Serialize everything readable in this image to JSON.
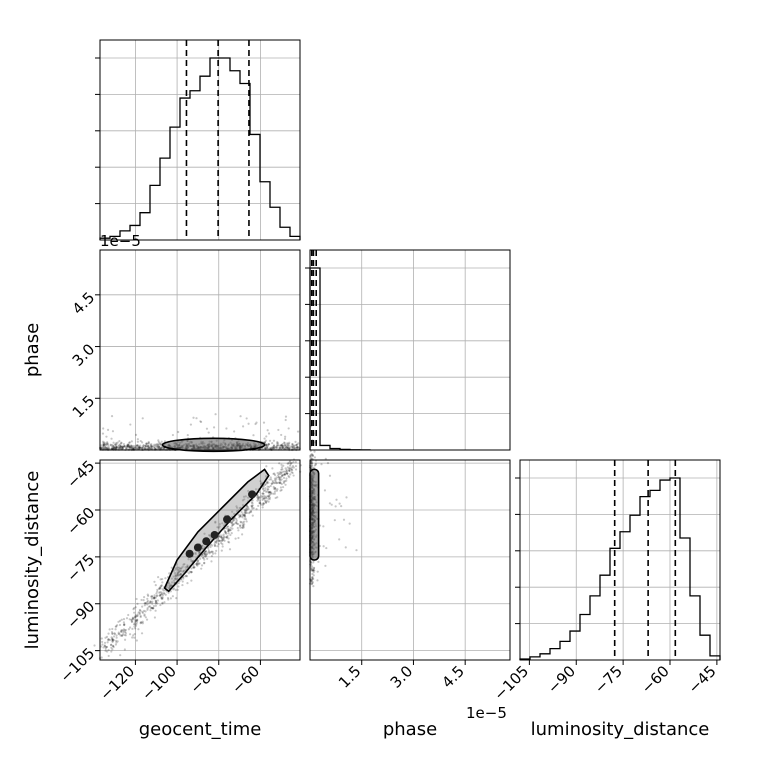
{
  "chart_data": {
    "type": "corner",
    "parameters": [
      "geocent_time",
      "phase",
      "luminosity_distance"
    ],
    "offset_labels": {
      "phase_axis": "1e−5"
    },
    "axes": {
      "geocent_time": {
        "range": [
          -137,
          -41
        ],
        "ticks": [
          -120,
          -100,
          -80,
          -60
        ],
        "tick_labels": [
          "−120",
          "−100",
          "−80",
          "−60"
        ]
      },
      "phase": {
        "range": [
          0.0,
          5.8
        ],
        "ticks": [
          1.5,
          3.0,
          4.5
        ],
        "tick_labels": [
          "1.5",
          "3.0",
          "4.5"
        ]
      },
      "luminosity_distance": {
        "range": [
          -108,
          -44
        ],
        "ticks": [
          -105,
          -90,
          -75,
          -60,
          -45
        ],
        "tick_labels": [
          "−105",
          "−90",
          "−75",
          "−60",
          "−45"
        ]
      }
    },
    "histograms": {
      "geocent_time": {
        "bin_edges": [
          -137,
          -132.2,
          -127.4,
          -122.6,
          -117.8,
          -113,
          -108.2,
          -103.4,
          -98.6,
          -93.8,
          -89,
          -84.2,
          -79.4,
          -74.6,
          -69.8,
          -65,
          -60.2,
          -55.4,
          -50.6,
          -45.8,
          -41
        ],
        "counts": [
          1,
          2,
          5,
          8,
          15,
          30,
          45,
          62,
          78,
          82,
          90,
          100,
          100,
          93,
          86,
          58,
          32,
          18,
          7,
          2
        ],
        "quantiles": [
          -95.5,
          -80.3,
          -65.5
        ]
      },
      "phase": {
        "bin_edges": [
          0.0,
          0.29,
          0.58,
          0.87,
          1.16,
          1.45,
          1.74
        ],
        "counts": [
          100,
          2.5,
          0.8,
          0.3,
          0.1,
          0.05
        ],
        "quantiles": [
          0.05,
          0.1,
          0.18
        ]
      },
      "luminosity_distance": {
        "bin_edges": [
          -108,
          -104.8,
          -101.6,
          -98.4,
          -95.2,
          -92,
          -88.8,
          -85.6,
          -82.4,
          -79.2,
          -76,
          -72.8,
          -69.6,
          -66.4,
          -63.2,
          -60,
          -56.8,
          -53.6,
          -50.4,
          -47.2,
          -44
        ],
        "counts": [
          0.5,
          1.5,
          3,
          5.5,
          9,
          14,
          22,
          31,
          41,
          54,
          62,
          70,
          79,
          82,
          87,
          88,
          59,
          31,
          12,
          2
        ],
        "quantiles": [
          -77.7,
          -67.0,
          -58.3
        ]
      }
    },
    "contours_2d": [
      {
        "x": "geocent_time",
        "y": "luminosity_distance",
        "samples_trend": {
          "x": [
            -134,
            -43
          ],
          "y": [
            -104,
            -45
          ]
        },
        "level_outline": [
          [
            -106,
            -85
          ],
          [
            -100,
            -76
          ],
          [
            -90,
            -67
          ],
          [
            -78,
            -59
          ],
          [
            -66,
            -51
          ],
          [
            -58,
            -47
          ],
          [
            -56,
            -49
          ],
          [
            -62,
            -55
          ],
          [
            -74,
            -63
          ],
          [
            -86,
            -72
          ],
          [
            -96,
            -80
          ],
          [
            -104,
            -86
          ]
        ],
        "core_points": [
          [
            -82,
            -68
          ],
          [
            -86,
            -70
          ],
          [
            -90,
            -72
          ],
          [
            -94,
            -74
          ],
          [
            -76,
            -63
          ],
          [
            -64,
            -55
          ]
        ]
      },
      {
        "x": "geocent_time",
        "y": "phase",
        "level_outline_x": [
          -107,
          -58
        ],
        "level_outline_y": [
          0.02,
          0.28
        ]
      },
      {
        "x": "phase",
        "y": "luminosity_distance",
        "level_outline_x": [
          0.0,
          0.25
        ],
        "level_outline_y": [
          -76,
          -47
        ]
      }
    ]
  }
}
